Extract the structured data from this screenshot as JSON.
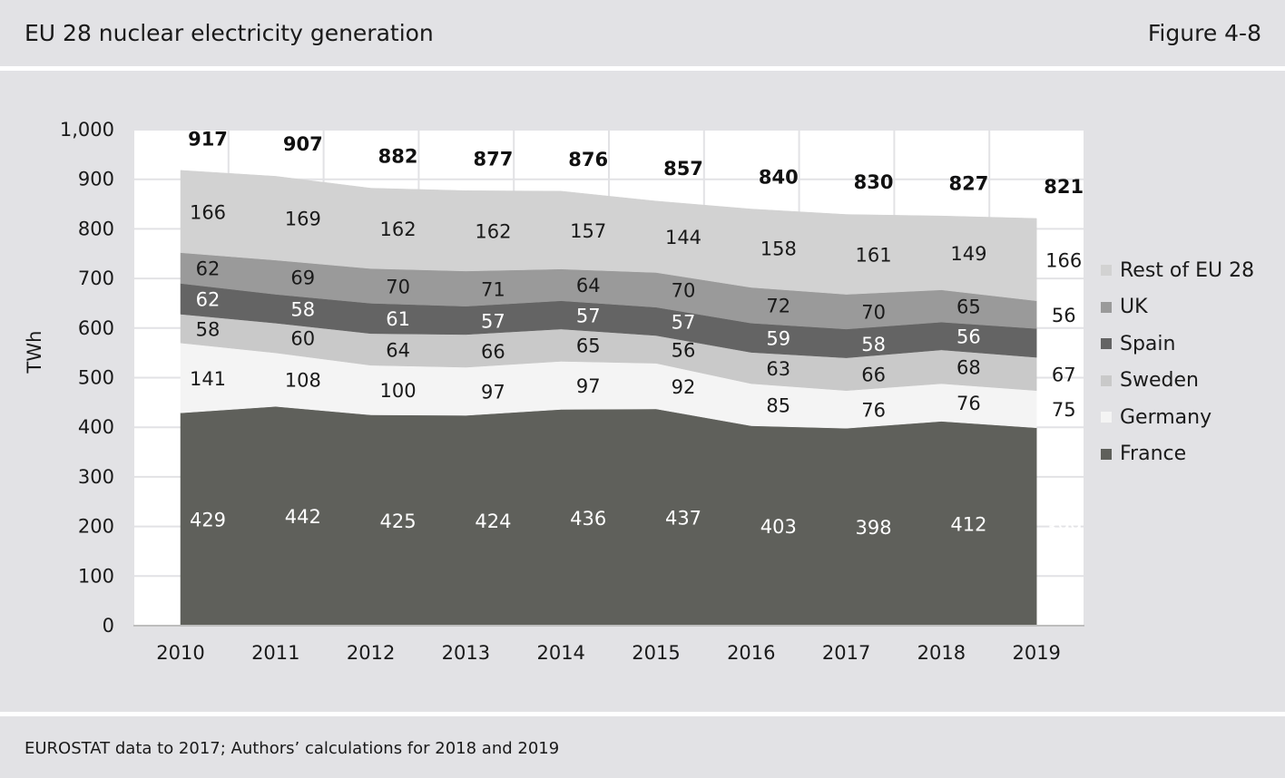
{
  "header": {
    "title": "EU 28 nuclear electricity generation",
    "figure": "Figure 4-8"
  },
  "footer": {
    "source": "EUROSTAT data to 2017; Authors’ calculations for 2018 and 2019"
  },
  "chart_data": {
    "type": "area",
    "stacked": true,
    "title": "EU 28 nuclear electricity generation",
    "xlabel": "",
    "ylabel": "TWh",
    "ylim": [
      0,
      1000
    ],
    "yticks": [
      0,
      100,
      200,
      300,
      400,
      500,
      600,
      700,
      800,
      900,
      1000
    ],
    "ytick_labels": [
      "0",
      "100",
      "200",
      "300",
      "400",
      "500",
      "600",
      "700",
      "800",
      "900",
      "1,000"
    ],
    "grid": true,
    "legend_position": "right",
    "categories": [
      "2010",
      "2011",
      "2012",
      "2013",
      "2014",
      "2015",
      "2016",
      "2017",
      "2018",
      "2019"
    ],
    "series": [
      {
        "name": "France",
        "color": "#5f605b",
        "label_color": "#ffffff",
        "values": [
          429,
          442,
          425,
          424,
          436,
          437,
          403,
          398,
          412,
          399
        ]
      },
      {
        "name": "Germany",
        "color": "#f4f4f4",
        "label_color": "#1a1a1a",
        "values": [
          141,
          108,
          100,
          97,
          97,
          92,
          85,
          76,
          76,
          75
        ]
      },
      {
        "name": "Sweden",
        "color": "#c9c9c9",
        "label_color": "#1a1a1a",
        "values": [
          58,
          60,
          64,
          66,
          65,
          56,
          63,
          66,
          68,
          67
        ]
      },
      {
        "name": "Spain",
        "color": "#646464",
        "label_color": "#ffffff",
        "values": [
          62,
          58,
          61,
          57,
          57,
          57,
          59,
          58,
          56,
          58
        ]
      },
      {
        "name": "UK",
        "color": "#9a9a9a",
        "label_color": "#1a1a1a",
        "values": [
          62,
          69,
          70,
          71,
          64,
          70,
          72,
          70,
          65,
          56
        ]
      },
      {
        "name": "Rest of EU 28",
        "color": "#d2d2d2",
        "label_color": "#1a1a1a",
        "values": [
          166,
          169,
          162,
          162,
          157,
          144,
          158,
          161,
          149,
          166
        ]
      }
    ],
    "totals": [
      917,
      907,
      882,
      877,
      876,
      857,
      840,
      830,
      827,
      821
    ],
    "legend": [
      "Rest of EU 28",
      "UK",
      "Spain",
      "Sweden",
      "Germany",
      "France"
    ]
  }
}
